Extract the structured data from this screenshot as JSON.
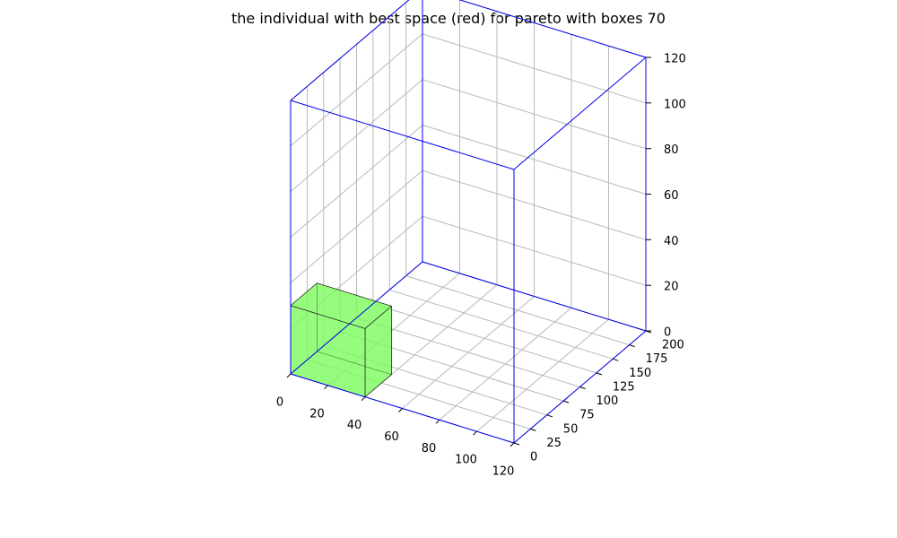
{
  "chart_data": {
    "type": "3d-box",
    "title": "the individual with best space (red) for pareto with boxes 70",
    "axes": {
      "x": {
        "range": [
          0,
          120
        ],
        "ticks": [
          0,
          20,
          40,
          60,
          80,
          100,
          120
        ]
      },
      "y": {
        "range": [
          0,
          200
        ],
        "ticks": [
          0,
          25,
          50,
          75,
          100,
          125,
          150,
          175,
          200
        ]
      },
      "z": {
        "range": [
          0,
          120
        ],
        "ticks": [
          0,
          20,
          40,
          60,
          80,
          100,
          120
        ]
      }
    },
    "grid": true,
    "container": {
      "dims": [
        120,
        200,
        120
      ],
      "edge_color": "#0000ee"
    },
    "boxes": [
      {
        "origin": [
          0,
          0,
          0
        ],
        "size": [
          40,
          40,
          30
        ],
        "face_color": "#7cfc5c",
        "edge_color": "#1a1a1a"
      }
    ]
  }
}
